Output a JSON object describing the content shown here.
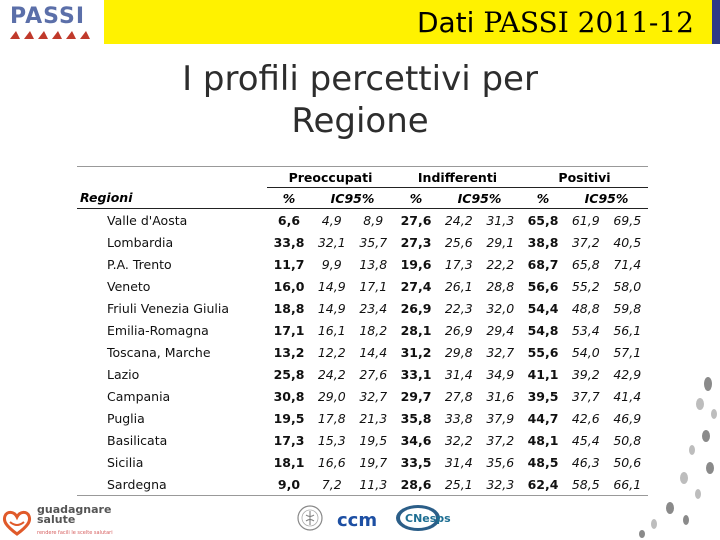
{
  "header": {
    "logo_text": "PASSI",
    "title_prefix": "Dati",
    "title_suffix": "PASSI 2011-12",
    "bar_color": "#2e3a86",
    "highlight_color": "#fff200"
  },
  "main": {
    "title_line1": "I profili percettivi per",
    "title_line2": "Regione"
  },
  "table": {
    "groups": [
      "Preoccupati",
      "Indifferenti",
      "Positivi"
    ],
    "columns": {
      "region": "Regioni",
      "pct": "%",
      "ci": "IC95%"
    },
    "rows": [
      {
        "region": "Valle d'Aosta",
        "vals": [
          "6,6",
          "4,9",
          "8,9",
          "27,6",
          "24,2",
          "31,3",
          "65,8",
          "61,9",
          "69,5"
        ]
      },
      {
        "region": "Lombardia",
        "vals": [
          "33,8",
          "32,1",
          "35,7",
          "27,3",
          "25,6",
          "29,1",
          "38,8",
          "37,2",
          "40,5"
        ]
      },
      {
        "region": "P.A. Trento",
        "vals": [
          "11,7",
          "9,9",
          "13,8",
          "19,6",
          "17,3",
          "22,2",
          "68,7",
          "65,8",
          "71,4"
        ]
      },
      {
        "region": "Veneto",
        "vals": [
          "16,0",
          "14,9",
          "17,1",
          "27,4",
          "26,1",
          "28,8",
          "56,6",
          "55,2",
          "58,0"
        ]
      },
      {
        "region": "Friuli Venezia Giulia",
        "vals": [
          "18,8",
          "14,9",
          "23,4",
          "26,9",
          "22,3",
          "32,0",
          "54,4",
          "48,8",
          "59,8"
        ]
      },
      {
        "region": "Emilia-Romagna",
        "vals": [
          "17,1",
          "16,1",
          "18,2",
          "28,1",
          "26,9",
          "29,4",
          "54,8",
          "53,4",
          "56,1"
        ]
      },
      {
        "region": "Toscana, Marche",
        "vals": [
          "13,2",
          "12,2",
          "14,4",
          "31,2",
          "29,8",
          "32,7",
          "55,6",
          "54,0",
          "57,1"
        ]
      },
      {
        "region": "Lazio",
        "vals": [
          "25,8",
          "24,2",
          "27,6",
          "33,1",
          "31,4",
          "34,9",
          "41,1",
          "39,2",
          "42,9"
        ]
      },
      {
        "region": "Campania",
        "vals": [
          "30,8",
          "29,0",
          "32,7",
          "29,7",
          "27,8",
          "31,6",
          "39,5",
          "37,7",
          "41,4"
        ]
      },
      {
        "region": "Puglia",
        "vals": [
          "19,5",
          "17,8",
          "21,3",
          "35,8",
          "33,8",
          "37,9",
          "44,7",
          "42,6",
          "46,9"
        ]
      },
      {
        "region": "Basilicata",
        "vals": [
          "17,3",
          "15,3",
          "19,5",
          "34,6",
          "32,2",
          "37,2",
          "48,1",
          "45,4",
          "50,8"
        ]
      },
      {
        "region": "Sicilia",
        "vals": [
          "18,1",
          "16,6",
          "19,7",
          "33,5",
          "31,4",
          "35,6",
          "48,5",
          "46,3",
          "50,6"
        ]
      },
      {
        "region": "Sardegna",
        "vals": [
          "9,0",
          "7,2",
          "11,3",
          "28,6",
          "25,1",
          "32,3",
          "62,4",
          "58,5",
          "66,1"
        ]
      }
    ]
  },
  "footer": {
    "gs_line1": "guadagnare",
    "gs_line2": "salute",
    "gs_sub": "rendere facili le scelte salutari",
    "ccm_text": "ccm",
    "cnesps_text": "CNesps"
  }
}
